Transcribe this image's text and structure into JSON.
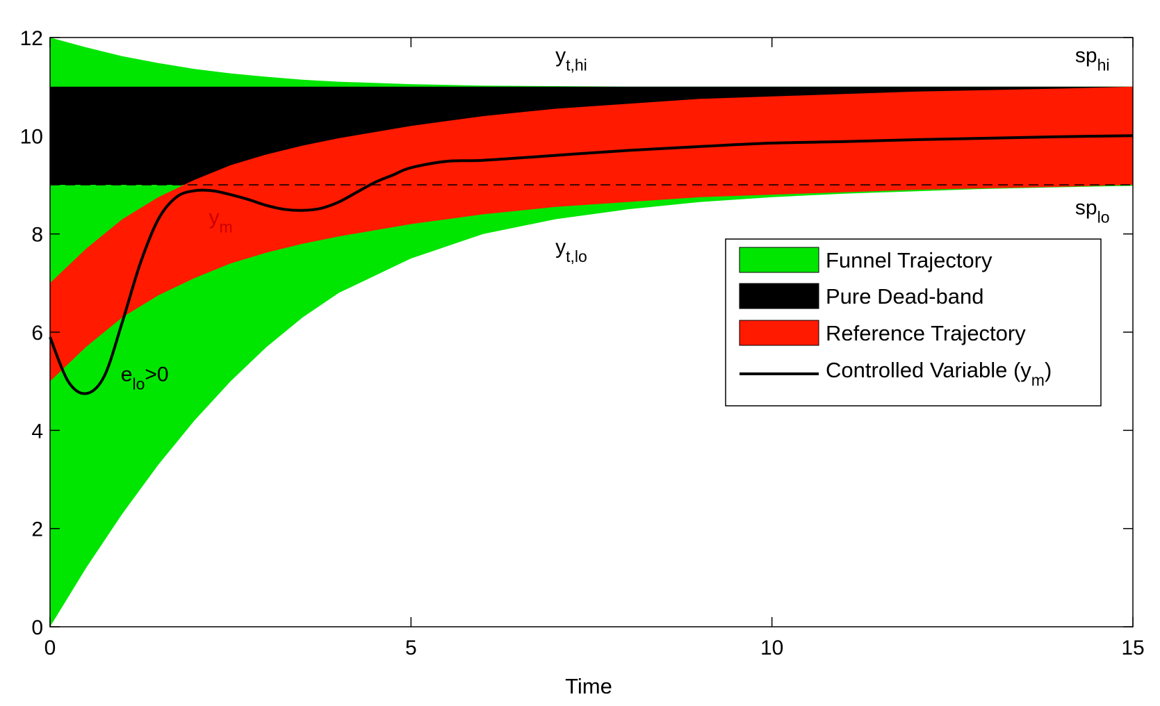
{
  "chart_data": {
    "type": "area",
    "title": "",
    "xlabel": "Time",
    "ylabel": "",
    "xlim": [
      0,
      15
    ],
    "ylim": [
      0,
      12
    ],
    "xticks": [
      0,
      5,
      10,
      15
    ],
    "yticks": [
      0,
      2,
      4,
      6,
      8,
      10,
      12
    ],
    "grid": false,
    "legend_position": "right",
    "colors": {
      "funnel": "#00e600",
      "deadband": "#000000",
      "reference": "#ff1a00",
      "controlled": "#000000"
    },
    "series": [
      {
        "name": "Funnel Trajectory",
        "kind": "band",
        "x": [
          0,
          0.5,
          1,
          1.5,
          2,
          2.5,
          3,
          3.5,
          4,
          5,
          6,
          7,
          8,
          9,
          10,
          11,
          12,
          13,
          14,
          15
        ],
        "upper": [
          12,
          11.8,
          11.62,
          11.48,
          11.36,
          11.27,
          11.2,
          11.14,
          11.1,
          11.05,
          11.02,
          11.01,
          11.0,
          11.0,
          11.0,
          11.0,
          11.0,
          11.0,
          11.0,
          11.0
        ],
        "lower": [
          0,
          1.2,
          2.3,
          3.3,
          4.2,
          5.0,
          5.7,
          6.3,
          6.8,
          7.5,
          8.0,
          8.3,
          8.5,
          8.65,
          8.75,
          8.82,
          8.87,
          8.92,
          8.95,
          8.98
        ]
      },
      {
        "name": "Pure Dead-band",
        "kind": "band",
        "x": [
          0,
          15
        ],
        "upper": [
          11,
          11
        ],
        "lower": [
          9,
          9
        ]
      },
      {
        "name": "Reference Trajectory",
        "kind": "band",
        "x": [
          0,
          0.5,
          1,
          1.5,
          2,
          2.5,
          3,
          3.5,
          4,
          5,
          6,
          7,
          8,
          9,
          10,
          11,
          12,
          13,
          14,
          15
        ],
        "upper": [
          7.0,
          7.7,
          8.3,
          8.75,
          9.1,
          9.4,
          9.62,
          9.8,
          9.95,
          10.2,
          10.4,
          10.55,
          10.65,
          10.75,
          10.8,
          10.85,
          10.9,
          10.93,
          10.96,
          11.0
        ],
        "lower": [
          5.0,
          5.7,
          6.3,
          6.75,
          7.1,
          7.4,
          7.62,
          7.8,
          7.95,
          8.2,
          8.4,
          8.55,
          8.65,
          8.75,
          8.8,
          8.85,
          8.9,
          8.93,
          8.96,
          9.0
        ]
      },
      {
        "name": "Controlled Variable (y",
        "name_sub": "m",
        "name_suffix": ")",
        "kind": "line",
        "x": [
          0,
          0.25,
          0.5,
          0.75,
          1.0,
          1.25,
          1.5,
          1.75,
          2.0,
          2.25,
          2.5,
          2.75,
          3.0,
          3.25,
          3.5,
          3.75,
          4.0,
          4.25,
          4.5,
          4.75,
          5.0,
          5.5,
          6.0,
          7.0,
          8.0,
          9.0,
          10.0,
          11.0,
          12.0,
          13.0,
          14.0,
          15.0
        ],
        "y": [
          5.9,
          5.0,
          4.75,
          5.1,
          6.2,
          7.4,
          8.3,
          8.75,
          8.88,
          8.88,
          8.8,
          8.7,
          8.58,
          8.5,
          8.48,
          8.52,
          8.65,
          8.85,
          9.05,
          9.2,
          9.35,
          9.48,
          9.5,
          9.6,
          9.7,
          9.78,
          9.85,
          9.88,
          9.92,
          9.95,
          9.98,
          10.0
        ]
      }
    ],
    "reference_lines": [
      {
        "y": 9,
        "style": "dashed"
      }
    ],
    "annotations": [
      {
        "text": "y",
        "sub": "t,hi",
        "x": 7.0,
        "y": 11.5,
        "color": "#000000"
      },
      {
        "text": "sp",
        "sub": "hi",
        "x": 14.2,
        "y": 11.5,
        "color": "#000000"
      },
      {
        "text": "sp",
        "sub": "lo",
        "x": 14.2,
        "y": 8.4,
        "color": "#000000"
      },
      {
        "text": "y",
        "sub": "t,lo",
        "x": 7.0,
        "y": 7.6,
        "color": "#000000"
      },
      {
        "text": "y",
        "sub": "m",
        "x": 2.2,
        "y": 8.2,
        "color": "#cc0000"
      },
      {
        "text": "e",
        "sub": "lo",
        "suffix": ">0",
        "x": 0.98,
        "y": 5.0,
        "color": "#000000"
      }
    ]
  }
}
